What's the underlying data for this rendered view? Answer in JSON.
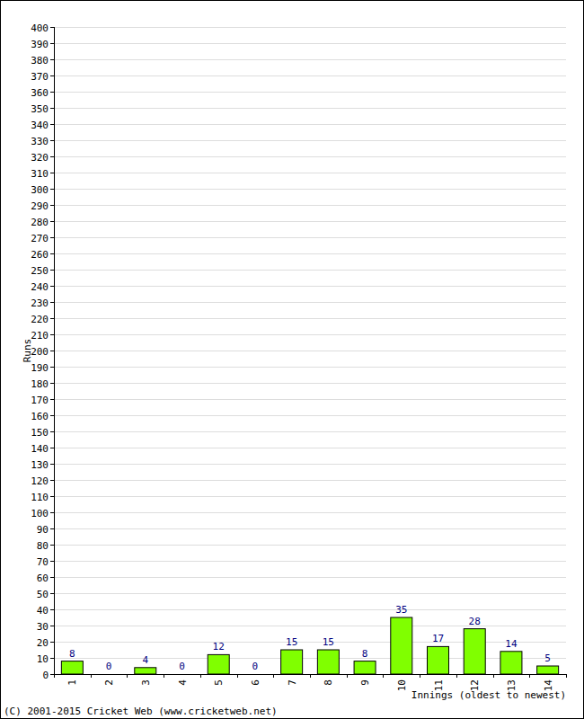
{
  "chart_data": {
    "type": "bar",
    "x_label": "Innings (oldest to newest)",
    "y_label": "Runs",
    "annotations": [
      "(C) 2001-2015 Cricket Web (www.cricketweb.net)"
    ],
    "categories": [
      "1",
      "2",
      "3",
      "4",
      "5",
      "6",
      "7",
      "8",
      "9",
      "10",
      "11",
      "12",
      "13",
      "14"
    ],
    "values": [
      8,
      0,
      4,
      0,
      12,
      0,
      15,
      15,
      8,
      35,
      17,
      28,
      14,
      5
    ],
    "color": "#80ff00",
    "ylim": [
      0,
      400
    ],
    "yticks": [
      0,
      10,
      20,
      30,
      40,
      50,
      60,
      70,
      80,
      90,
      100,
      110,
      120,
      130,
      140,
      150,
      160,
      170,
      180,
      190,
      200,
      210,
      220,
      230,
      240,
      250,
      260,
      270,
      280,
      290,
      300,
      310,
      320,
      330,
      340,
      350,
      360,
      370,
      380,
      390,
      400
    ],
    "grid": true,
    "data_labels": true
  }
}
